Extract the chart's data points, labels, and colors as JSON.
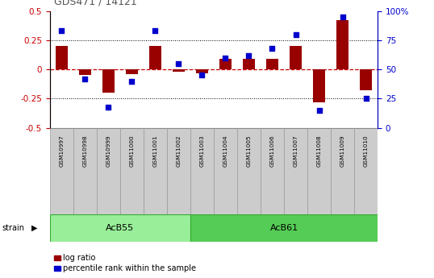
{
  "title": "GDS471 / 14121",
  "samples": [
    "GSM10997",
    "GSM10998",
    "GSM10999",
    "GSM11000",
    "GSM11001",
    "GSM11002",
    "GSM11003",
    "GSM11004",
    "GSM11005",
    "GSM11006",
    "GSM11007",
    "GSM11008",
    "GSM11009",
    "GSM11010"
  ],
  "log_ratio": [
    0.2,
    -0.05,
    -0.2,
    -0.04,
    0.2,
    -0.02,
    -0.03,
    0.09,
    0.09,
    0.09,
    0.2,
    -0.28,
    0.42,
    -0.18
  ],
  "percentile_rank": [
    83,
    42,
    18,
    40,
    83,
    55,
    45,
    60,
    62,
    68,
    80,
    15,
    95,
    25
  ],
  "ylim_left": [
    -0.5,
    0.5
  ],
  "ylim_right": [
    0,
    100
  ],
  "yticks_left": [
    -0.5,
    -0.25,
    0.0,
    0.25,
    0.5
  ],
  "yticks_right": [
    0,
    25,
    50,
    75,
    100
  ],
  "strain_groups": [
    {
      "label": "AcB55",
      "start": 0,
      "end": 5,
      "color": "#99EE99"
    },
    {
      "label": "AcB61",
      "start": 6,
      "end": 13,
      "color": "#55CC55"
    }
  ],
  "bar_color": "#990000",
  "dot_color": "#0000CC",
  "zero_line_color": "#CC0000",
  "background_color": "#ffffff",
  "title_color": "#555555",
  "acb55_color": "#aaeaaa",
  "acb61_color": "#55cc55",
  "label_bg": "#cccccc",
  "label_edge": "#999999"
}
